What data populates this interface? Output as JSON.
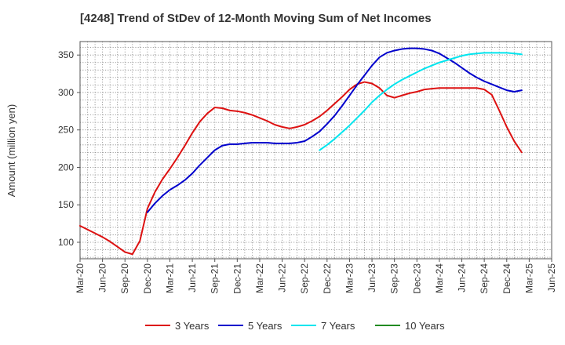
{
  "chart_data": {
    "type": "line",
    "title": "[4248]  Trend of StDev of 12-Month Moving Sum of Net Incomes",
    "ylabel": "Amount (million yen)",
    "xlabel": "",
    "ylim": [
      78,
      368
    ],
    "yticks": [
      100,
      150,
      200,
      250,
      300,
      350
    ],
    "x_tick_labels": [
      "Mar-20",
      "Jun-20",
      "Sep-20",
      "Dec-20",
      "Mar-21",
      "Jun-21",
      "Sep-21",
      "Dec-21",
      "Mar-22",
      "Jun-22",
      "Sep-22",
      "Dec-22",
      "Mar-23",
      "Jun-23",
      "Sep-23",
      "Dec-23",
      "Mar-24",
      "Jun-24",
      "Sep-24",
      "Dec-24",
      "Mar-25",
      "Jun-25"
    ],
    "grid": true,
    "legend_position": "bottom",
    "series": [
      {
        "name": "3 Years",
        "color": "#dd1111",
        "points": [
          [
            "Mar-20",
            122
          ],
          [
            "Apr-20",
            117
          ],
          [
            "May-20",
            112
          ],
          [
            "Jun-20",
            107
          ],
          [
            "Jul-20",
            101
          ],
          [
            "Aug-20",
            94
          ],
          [
            "Sep-20",
            87
          ],
          [
            "Oct-20",
            84
          ],
          [
            "Nov-20",
            102
          ],
          [
            "Dec-20",
            145
          ],
          [
            "Jan-21",
            167
          ],
          [
            "Feb-21",
            184
          ],
          [
            "Mar-21",
            198
          ],
          [
            "Apr-21",
            213
          ],
          [
            "May-21",
            229
          ],
          [
            "Jun-21",
            246
          ],
          [
            "Jul-21",
            261
          ],
          [
            "Aug-21",
            272
          ],
          [
            "Sep-21",
            280
          ],
          [
            "Oct-21",
            279
          ],
          [
            "Nov-21",
            276
          ],
          [
            "Dec-21",
            275
          ],
          [
            "Jan-22",
            273
          ],
          [
            "Feb-22",
            270
          ],
          [
            "Mar-22",
            266
          ],
          [
            "Apr-22",
            262
          ],
          [
            "May-22",
            257
          ],
          [
            "Jun-22",
            254
          ],
          [
            "Jul-22",
            252
          ],
          [
            "Aug-22",
            254
          ],
          [
            "Sep-22",
            257
          ],
          [
            "Oct-22",
            262
          ],
          [
            "Nov-22",
            268
          ],
          [
            "Dec-22",
            276
          ],
          [
            "Jan-23",
            285
          ],
          [
            "Feb-23",
            294
          ],
          [
            "Mar-23",
            304
          ],
          [
            "Apr-23",
            311
          ],
          [
            "May-23",
            314
          ],
          [
            "Jun-23",
            312
          ],
          [
            "Jul-23",
            306
          ],
          [
            "Aug-23",
            296
          ],
          [
            "Sep-23",
            293
          ],
          [
            "Oct-23",
            296
          ],
          [
            "Nov-23",
            299
          ],
          [
            "Dec-23",
            301
          ],
          [
            "Jan-24",
            304
          ],
          [
            "Feb-24",
            305
          ],
          [
            "Mar-24",
            306
          ],
          [
            "Apr-24",
            306
          ],
          [
            "May-24",
            306
          ],
          [
            "Jun-24",
            306
          ],
          [
            "Jul-24",
            306
          ],
          [
            "Aug-24",
            306
          ],
          [
            "Sep-24",
            304
          ],
          [
            "Oct-24",
            297
          ],
          [
            "Nov-24",
            276
          ],
          [
            "Dec-24",
            254
          ],
          [
            "Jan-25",
            235
          ],
          [
            "Feb-25",
            220
          ]
        ]
      },
      {
        "name": "5 Years",
        "color": "#0000cc",
        "points": [
          [
            "Dec-20",
            140
          ],
          [
            "Jan-21",
            152
          ],
          [
            "Feb-21",
            162
          ],
          [
            "Mar-21",
            170
          ],
          [
            "Apr-21",
            176
          ],
          [
            "May-21",
            183
          ],
          [
            "Jun-21",
            192
          ],
          [
            "Jul-21",
            203
          ],
          [
            "Aug-21",
            213
          ],
          [
            "Sep-21",
            223
          ],
          [
            "Oct-21",
            229
          ],
          [
            "Nov-21",
            231
          ],
          [
            "Dec-21",
            231
          ],
          [
            "Jan-22",
            232
          ],
          [
            "Feb-22",
            233
          ],
          [
            "Mar-22",
            233
          ],
          [
            "Apr-22",
            233
          ],
          [
            "May-22",
            232
          ],
          [
            "Jun-22",
            232
          ],
          [
            "Jul-22",
            232
          ],
          [
            "Aug-22",
            233
          ],
          [
            "Sep-22",
            235
          ],
          [
            "Oct-22",
            241
          ],
          [
            "Nov-22",
            248
          ],
          [
            "Dec-22",
            258
          ],
          [
            "Jan-23",
            269
          ],
          [
            "Feb-23",
            282
          ],
          [
            "Mar-23",
            296
          ],
          [
            "Apr-23",
            310
          ],
          [
            "May-23",
            323
          ],
          [
            "Jun-23",
            336
          ],
          [
            "Jul-23",
            347
          ],
          [
            "Aug-23",
            353
          ],
          [
            "Sep-23",
            356
          ],
          [
            "Oct-23",
            358
          ],
          [
            "Nov-23",
            359
          ],
          [
            "Dec-23",
            359
          ],
          [
            "Jan-24",
            358
          ],
          [
            "Feb-24",
            356
          ],
          [
            "Mar-24",
            352
          ],
          [
            "Apr-24",
            346
          ],
          [
            "May-24",
            340
          ],
          [
            "Jun-24",
            333
          ],
          [
            "Jul-24",
            326
          ],
          [
            "Aug-24",
            320
          ],
          [
            "Sep-24",
            315
          ],
          [
            "Oct-24",
            311
          ],
          [
            "Nov-24",
            307
          ],
          [
            "Dec-24",
            303
          ],
          [
            "Jan-25",
            301
          ],
          [
            "Feb-25",
            303
          ]
        ]
      },
      {
        "name": "7 Years",
        "color": "#00e5ee",
        "points": [
          [
            "Nov-22",
            223
          ],
          [
            "Dec-22",
            230
          ],
          [
            "Jan-23",
            238
          ],
          [
            "Feb-23",
            247
          ],
          [
            "Mar-23",
            256
          ],
          [
            "Apr-23",
            266
          ],
          [
            "May-23",
            276
          ],
          [
            "Jun-23",
            287
          ],
          [
            "Jul-23",
            296
          ],
          [
            "Aug-23",
            304
          ],
          [
            "Sep-23",
            311
          ],
          [
            "Oct-23",
            317
          ],
          [
            "Nov-23",
            322
          ],
          [
            "Dec-23",
            327
          ],
          [
            "Jan-24",
            332
          ],
          [
            "Feb-24",
            336
          ],
          [
            "Mar-24",
            340
          ],
          [
            "Apr-24",
            343
          ],
          [
            "May-24",
            346
          ],
          [
            "Jun-24",
            349
          ],
          [
            "Jul-24",
            351
          ],
          [
            "Aug-24",
            352
          ],
          [
            "Sep-24",
            353
          ],
          [
            "Oct-24",
            353
          ],
          [
            "Nov-24",
            353
          ],
          [
            "Dec-24",
            353
          ],
          [
            "Jan-25",
            352
          ],
          [
            "Feb-25",
            351
          ]
        ]
      },
      {
        "name": "10 Years",
        "color": "#228b22",
        "points": []
      }
    ]
  }
}
